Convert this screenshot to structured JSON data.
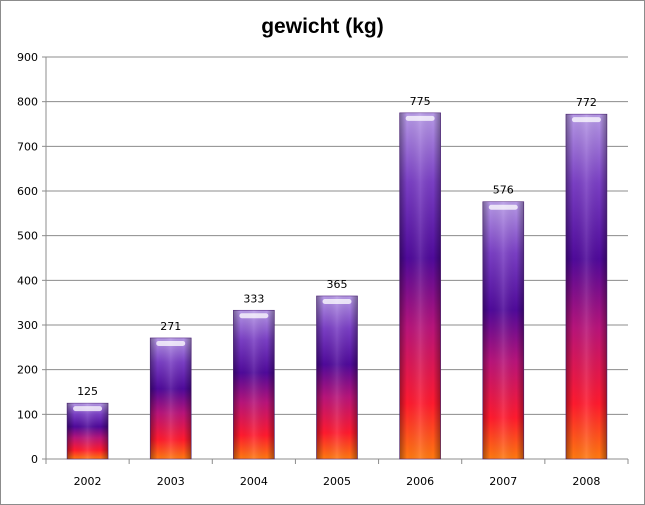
{
  "chart_data": {
    "type": "bar",
    "title": "gewicht (kg)",
    "xlabel": "",
    "ylabel": "",
    "categories": [
      "2002",
      "2003",
      "2004",
      "2005",
      "2006",
      "2007",
      "2008"
    ],
    "values": [
      125,
      271,
      333,
      365,
      775,
      576,
      772
    ],
    "data_labels": [
      "125",
      "271",
      "333",
      "365",
      "775",
      "576",
      "772"
    ],
    "ylim": [
      0,
      900
    ],
    "yticks": [
      0,
      100,
      200,
      300,
      400,
      500,
      600,
      700,
      800,
      900
    ],
    "grid": true,
    "legend": "none",
    "colors": {
      "bar_top": "#b79be6",
      "bar_mid": "#4f0a9a",
      "bar_low": "#ff1a2e",
      "bar_bottom": "#ff7a10",
      "gridline": "#8c8c8c"
    }
  }
}
